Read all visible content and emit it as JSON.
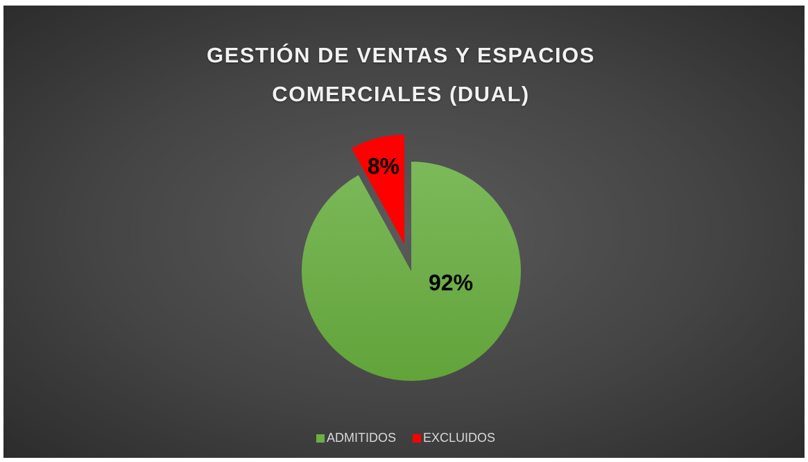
{
  "chart_data": {
    "type": "pie",
    "title": "GESTIÓN DE VENTAS Y ESPACIOS COMERCIALES (DUAL)",
    "categories": [
      "ADMITIDOS",
      "EXCLUIDOS"
    ],
    "values": [
      92,
      8
    ],
    "value_labels": [
      "92%",
      "8%"
    ],
    "colors": [
      "#6fad46",
      "#ff0000"
    ],
    "legend": "bottom"
  }
}
